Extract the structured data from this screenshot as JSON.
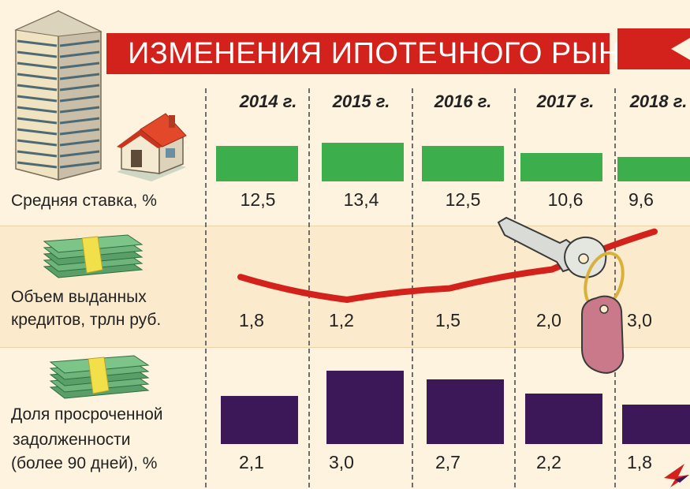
{
  "title": "ИЗМЕНЕНИЯ ИПОТЕЧНОГО РЫНКА",
  "row_labels": {
    "rate": "Средняя ставка, %",
    "volume_line1": "Объем выданных",
    "volume_line2": "кредитов, трлн руб.",
    "overdue_line1": "Доля просроченной",
    "overdue_line2": "задолженности",
    "overdue_line3": "(более 90 дней), %"
  },
  "colors": {
    "title_red": "#d3211b",
    "rate_bar": "#3cae4b",
    "volume_line": "#d3211b",
    "overdue_bar": "#3c1858"
  },
  "icons": [
    "apartment-building-icon",
    "house-icon",
    "money-stack-icon",
    "money-stack-icon",
    "key-with-tag-icon"
  ],
  "chart_data": {
    "type": "bar",
    "categories": [
      "2014 г.",
      "2015 г.",
      "2016 г.",
      "2017 г.",
      "2018 г."
    ],
    "series": [
      {
        "name": "Средняя ставка, %",
        "values": [
          12.5,
          13.4,
          12.5,
          10.6,
          9.6
        ],
        "labels": [
          "12,5",
          "13,4",
          "12,5",
          "10,6",
          "9,6"
        ]
      },
      {
        "name": "Объем выданных кредитов, трлн руб.",
        "values": [
          1.8,
          1.2,
          1.5,
          2.0,
          3.0
        ],
        "labels": [
          "1,8",
          "1,2",
          "1,5",
          "2,0",
          "3,0"
        ]
      },
      {
        "name": "Доля просроченной задолженности (более 90 дней), %",
        "values": [
          2.1,
          3.0,
          2.7,
          2.2,
          1.8
        ],
        "labels": [
          "2,1",
          "3,0",
          "2,7",
          "2,2",
          "1,8"
        ]
      }
    ]
  }
}
